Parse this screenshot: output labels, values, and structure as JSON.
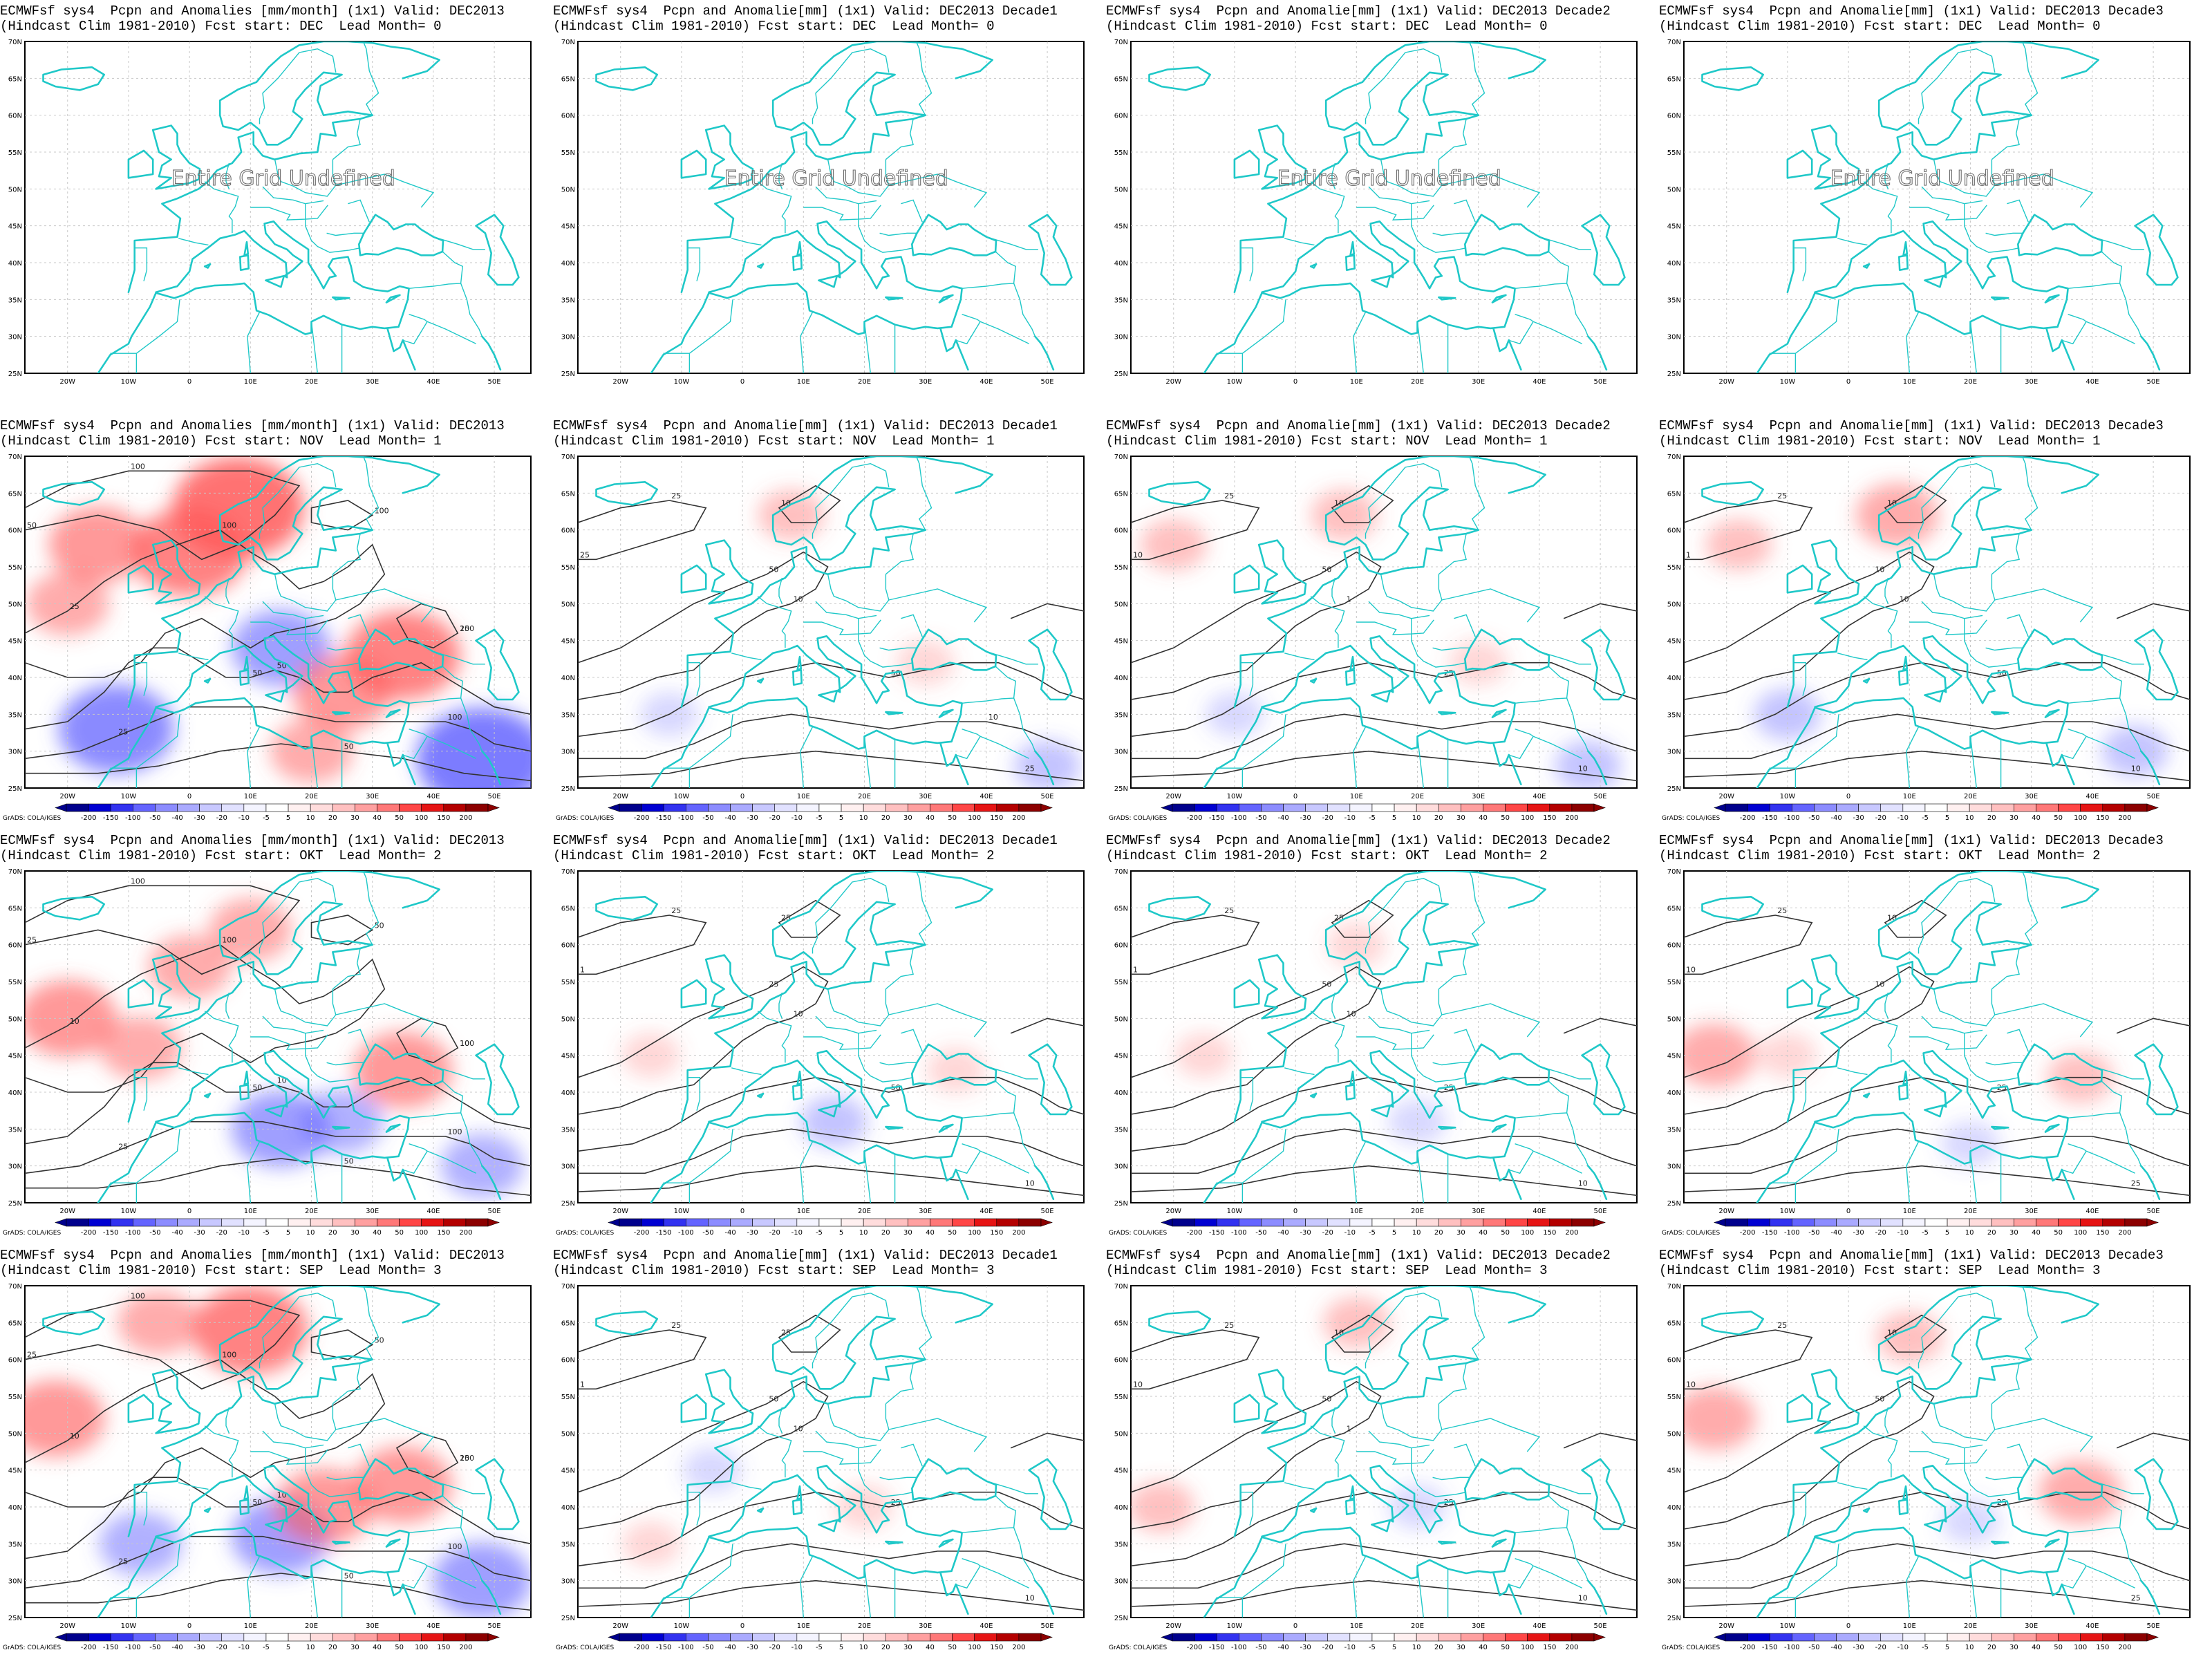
{
  "panels": [
    {
      "id": "r0c0",
      "title1": "ECMWFsf sys4  Pcpn and Anomalies [mm/month] (1x1) Valid: DEC2013",
      "title2": "(Hindcast Clim 1981-2010) Fcst start: DEC  Lead Month= 0",
      "undefined": true
    },
    {
      "id": "r0c1",
      "title1": "ECMWFsf sys4  Pcpn and Anomalie[mm] (1x1) Valid: DEC2013 Decade1",
      "title2": "(Hindcast Clim 1981-2010) Fcst start: DEC  Lead Month= 0",
      "undefined": true
    },
    {
      "id": "r0c2",
      "title1": "ECMWFsf sys4  Pcpn and Anomalie[mm] (1x1) Valid: DEC2013 Decade2",
      "title2": "(Hindcast Clim 1981-2010) Fcst start: DEC  Lead Month= 0",
      "undefined": true
    },
    {
      "id": "r0c3",
      "title1": "ECMWFsf sys4  Pcpn and Anomalie[mm] (1x1) Valid: DEC2013 Decade3",
      "title2": "(Hindcast Clim 1981-2010) Fcst start: DEC  Lead Month= 0",
      "undefined": true
    },
    {
      "id": "r1c0",
      "title1": "ECMWFsf sys4  Pcpn and Anomalies [mm/month] (1x1) Valid: DEC2013",
      "title2": "(Hindcast Clim 1981-2010) Fcst start: NOV  Lead Month= 1",
      "undefined": false,
      "contour_labels": [
        "100",
        "100",
        "50",
        "100",
        "50",
        "100",
        "100",
        "50",
        "25",
        "50",
        "25",
        "1",
        "25"
      ],
      "anomalies": [
        {
          "lon": -15,
          "lat": 58,
          "value": 30
        },
        {
          "lon": 0,
          "lat": 57,
          "value": 40
        },
        {
          "lon": 8,
          "lat": 63,
          "value": 50
        },
        {
          "lon": -20,
          "lat": 50,
          "value": 20
        },
        {
          "lon": -12,
          "lat": 33,
          "value": -40
        },
        {
          "lon": 15,
          "lat": 44,
          "value": -30
        },
        {
          "lon": 25,
          "lat": 38,
          "value": 30
        },
        {
          "lon": 35,
          "lat": 43,
          "value": 40
        },
        {
          "lon": 48,
          "lat": 29,
          "value": -50
        },
        {
          "lon": 20,
          "lat": 30,
          "value": 20
        }
      ]
    },
    {
      "id": "r1c1",
      "title1": "ECMWFsf sys4  Pcpn and Anomalie[mm] (1x1) Valid: DEC2013 Decade1",
      "title2": "(Hindcast Clim 1981-2010) Fcst start: NOV  Lead Month= 1",
      "undefined": false,
      "contour_labels": [
        "25",
        "50",
        "50",
        "25",
        "25",
        "10",
        "10",
        "25",
        "10",
        "1",
        "10"
      ],
      "anomalies": [
        {
          "lon": 8,
          "lat": 62,
          "value": 10
        },
        {
          "lon": -12,
          "lat": 35,
          "value": -5
        },
        {
          "lon": 30,
          "lat": 42,
          "value": 5
        },
        {
          "lon": 50,
          "lat": 28,
          "value": -10
        }
      ]
    },
    {
      "id": "r1c2",
      "title1": "ECMWFsf sys4  Pcpn and Anomalie[mm] (1x1) Valid: DEC2013 Decade2",
      "title2": "(Hindcast Clim 1981-2010) Fcst start: NOV  Lead Month= 1",
      "undefined": false,
      "contour_labels": [
        "25",
        "50",
        "25",
        "25",
        "10",
        "10",
        "25",
        "10",
        "1",
        "10"
      ],
      "anomalies": [
        {
          "lon": -20,
          "lat": 58,
          "value": 10
        },
        {
          "lon": 8,
          "lat": 62,
          "value": 10
        },
        {
          "lon": -10,
          "lat": 35,
          "value": -5
        },
        {
          "lon": 30,
          "lat": 42,
          "value": 5
        },
        {
          "lon": 48,
          "lat": 28,
          "value": -10
        }
      ]
    },
    {
      "id": "r1c3",
      "title1": "ECMWFsf sys4  Pcpn and Anomalie[mm] (1x1) Valid: DEC2013 Decade3",
      "title2": "(Hindcast Clim 1981-2010) Fcst start: NOV  Lead Month= 1",
      "undefined": false,
      "contour_labels": [
        "25",
        "10",
        "50",
        "25",
        "10",
        "10",
        "10",
        "1",
        "10"
      ],
      "anomalies": [
        {
          "lon": -18,
          "lat": 58,
          "value": 10
        },
        {
          "lon": 8,
          "lat": 62,
          "value": 20
        },
        {
          "lon": -10,
          "lat": 35,
          "value": -10
        },
        {
          "lon": 47,
          "lat": 30,
          "value": -10
        }
      ]
    },
    {
      "id": "r2c0",
      "title1": "ECMWFsf sys4  Pcpn and Anomalies [mm/month] (1x1) Valid: DEC2013",
      "title2": "(Hindcast Clim 1981-2010) Fcst start: OKT  Lead Month= 2",
      "undefined": false,
      "contour_labels": [
        "100",
        "100",
        "50",
        "100",
        "50",
        "100",
        "50",
        "25",
        "10",
        "10",
        "25",
        "1",
        "10"
      ],
      "anomalies": [
        {
          "lon": -20,
          "lat": 50,
          "value": 30
        },
        {
          "lon": -8,
          "lat": 46,
          "value": 20
        },
        {
          "lon": 0,
          "lat": 57,
          "value": 20
        },
        {
          "lon": 10,
          "lat": 62,
          "value": 20
        },
        {
          "lon": 35,
          "lat": 43,
          "value": 30
        },
        {
          "lon": 15,
          "lat": 35,
          "value": -30
        },
        {
          "lon": 25,
          "lat": 36,
          "value": -20
        },
        {
          "lon": 48,
          "lat": 30,
          "value": -20
        }
      ]
    },
    {
      "id": "r2c1",
      "title1": "ECMWFsf sys4  Pcpn and Anomalie[mm] (1x1) Valid: DEC2013 Decade1",
      "title2": "(Hindcast Clim 1981-2010) Fcst start: OKT  Lead Month= 2",
      "undefined": false,
      "contour_labels": [
        "25",
        "25",
        "50",
        "25",
        "10",
        "25",
        "10",
        "1",
        "10"
      ],
      "anomalies": [
        {
          "lon": -15,
          "lat": 45,
          "value": 5
        },
        {
          "lon": 15,
          "lat": 36,
          "value": -10
        },
        {
          "lon": 35,
          "lat": 43,
          "value": 5
        }
      ]
    },
    {
      "id": "r2c2",
      "title1": "ECMWFsf sys4  Pcpn and Anomalie[mm] (1x1) Valid: DEC2013 Decade2",
      "title2": "(Hindcast Clim 1981-2010) Fcst start: OKT  Lead Month= 2",
      "undefined": false,
      "contour_labels": [
        "25",
        "50",
        "25",
        "25",
        "10",
        "25",
        "10",
        "1",
        "10"
      ],
      "anomalies": [
        {
          "lon": -15,
          "lat": 45,
          "value": 5
        },
        {
          "lon": 20,
          "lat": 36,
          "value": -5
        },
        {
          "lon": 10,
          "lat": 60,
          "value": 5
        }
      ]
    },
    {
      "id": "r2c3",
      "title1": "ECMWFsf sys4  Pcpn and Anomalie[mm] (1x1) Valid: DEC2013 Decade3",
      "title2": "(Hindcast Clim 1981-2010) Fcst start: OKT  Lead Month= 2",
      "undefined": false,
      "contour_labels": [
        "25",
        "10",
        "25",
        "10",
        "25",
        "10",
        "1",
        "10"
      ],
      "anomalies": [
        {
          "lon": -22,
          "lat": 45,
          "value": 20
        },
        {
          "lon": -10,
          "lat": 45,
          "value": 5
        },
        {
          "lon": 20,
          "lat": 33,
          "value": -5
        },
        {
          "lon": 38,
          "lat": 42,
          "value": 10
        }
      ]
    },
    {
      "id": "r3c0",
      "title1": "ECMWFsf sys4  Pcpn and Anomalies [mm/month] (1x1) Valid: DEC2013",
      "title2": "(Hindcast Clim 1981-2010) Fcst start: SEP  Lead Month= 3",
      "undefined": false,
      "contour_labels": [
        "100",
        "100",
        "50",
        "100",
        "50",
        "100",
        "50",
        "25",
        "10",
        "10",
        "25",
        "1",
        "25"
      ],
      "anomalies": [
        {
          "lon": -22,
          "lat": 52,
          "value": 30
        },
        {
          "lon": -5,
          "lat": 65,
          "value": 20
        },
        {
          "lon": 10,
          "lat": 64,
          "value": 40
        },
        {
          "lon": -8,
          "lat": 35,
          "value": -20
        },
        {
          "lon": 15,
          "lat": 36,
          "value": -30
        },
        {
          "lon": 22,
          "lat": 40,
          "value": 30
        },
        {
          "lon": 35,
          "lat": 43,
          "value": 30
        },
        {
          "lon": 48,
          "lat": 30,
          "value": -30
        }
      ]
    },
    {
      "id": "r3c1",
      "title1": "ECMWFsf sys4  Pcpn and Anomalie[mm] (1x1) Valid: DEC2013 Decade1",
      "title2": "(Hindcast Clim 1981-2010) Fcst start: SEP  Lead Month= 3",
      "undefined": false,
      "contour_labels": [
        "25",
        "50",
        "25",
        "25",
        "10",
        "25",
        "10",
        "1",
        "10"
      ],
      "anomalies": [
        {
          "lon": -15,
          "lat": 35,
          "value": 5
        },
        {
          "lon": 20,
          "lat": 40,
          "value": 5
        },
        {
          "lon": -5,
          "lat": 45,
          "value": -5
        }
      ]
    },
    {
      "id": "r3c2",
      "title1": "ECMWFsf sys4  Pcpn and Anomalie[mm] (1x1) Valid: DEC2013 Decade2",
      "title2": "(Hindcast Clim 1981-2010) Fcst start: SEP  Lead Month= 3",
      "undefined": false,
      "contour_labels": [
        "25",
        "50",
        "25",
        "25",
        "10",
        "10",
        "25",
        "10",
        "1",
        "10"
      ],
      "anomalies": [
        {
          "lon": 10,
          "lat": 65,
          "value": 10
        },
        {
          "lon": -22,
          "lat": 40,
          "value": 10
        },
        {
          "lon": 20,
          "lat": 40,
          "value": -5
        }
      ]
    },
    {
      "id": "r3c3",
      "title1": "ECMWFsf sys4  Pcpn and Anomalie[mm] (1x1) Valid: DEC2013 Decade3",
      "title2": "(Hindcast Clim 1981-2010) Fcst start: SEP  Lead Month= 3",
      "undefined": false,
      "contour_labels": [
        "25",
        "50",
        "25",
        "10",
        "25",
        "10",
        "1",
        "10"
      ],
      "anomalies": [
        {
          "lon": -22,
          "lat": 52,
          "value": 20
        },
        {
          "lon": 10,
          "lat": 63,
          "value": 10
        },
        {
          "lon": 38,
          "lat": 42,
          "value": 20
        },
        {
          "lon": 20,
          "lat": 38,
          "value": -5
        }
      ]
    }
  ],
  "undefined_text": "Entire Grid Undefined",
  "lon_ticks": [
    "20W",
    "10W",
    "0",
    "10E",
    "20E",
    "30E",
    "40E",
    "50E"
  ],
  "lat_ticks": [
    "70N",
    "65N",
    "60N",
    "55N",
    "50N",
    "45N",
    "40N",
    "35N",
    "30N",
    "25N"
  ],
  "colorbar": {
    "title": "GrADS: COLA/IGES",
    "labels": [
      "-200",
      "-150",
      "-100",
      "-50",
      "-40",
      "-30",
      "-20",
      "-10",
      "-5",
      "5",
      "10",
      "20",
      "30",
      "40",
      "50",
      "100",
      "150",
      "200"
    ],
    "colors": [
      "#00008c",
      "#0000d2",
      "#3232f0",
      "#6464ff",
      "#8c8cff",
      "#aaaaff",
      "#c8c8ff",
      "#e1e1ff",
      "#f4f4ff",
      "#ffffff",
      "#fff0f0",
      "#ffdcdc",
      "#ffc0c0",
      "#ffa0a0",
      "#ff7878",
      "#ff4646",
      "#e61414",
      "#b40000",
      "#8c0000"
    ],
    "negative_color": "#6464ff",
    "positive_color": "#ff5a5a"
  }
}
